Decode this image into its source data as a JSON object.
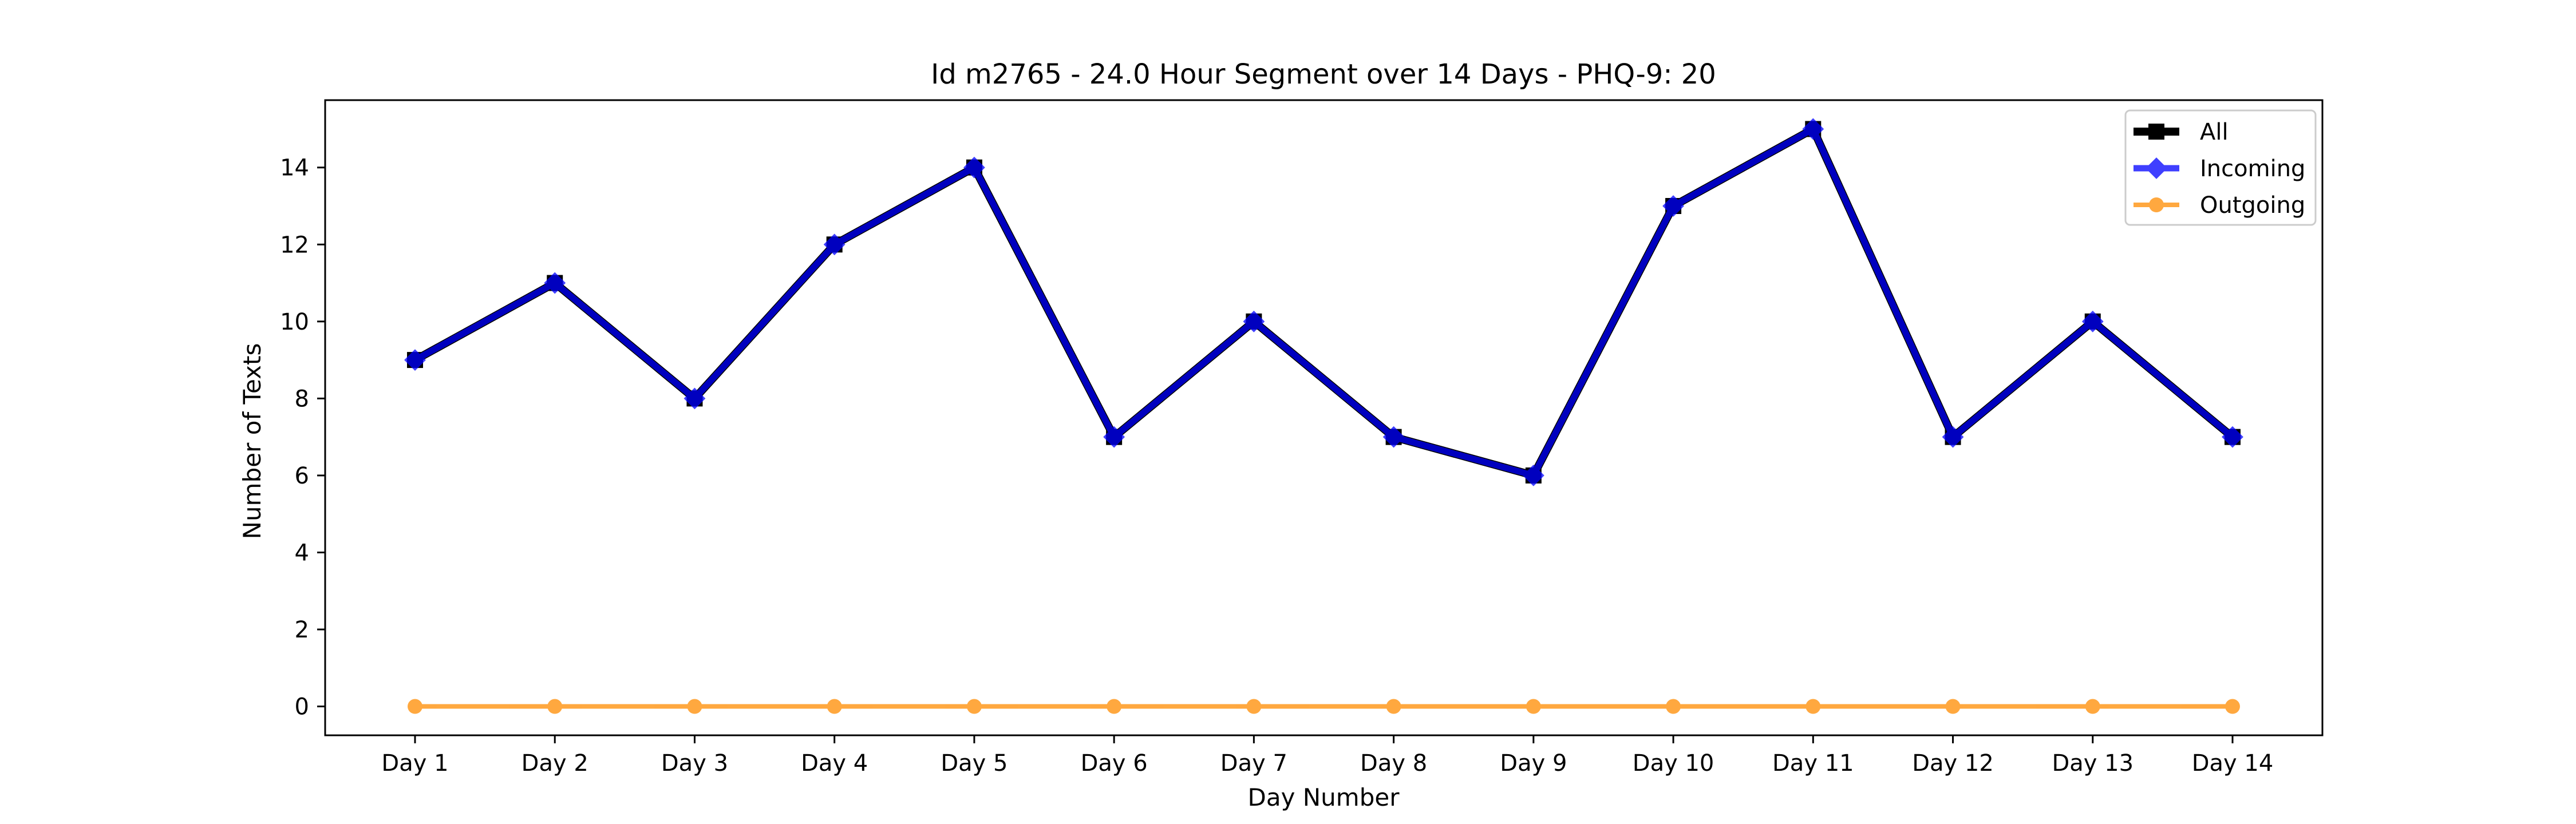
{
  "chart_data": {
    "type": "line",
    "title": "Id m2765 - 24.0 Hour Segment over 14 Days - PHQ-9: 20",
    "xlabel": "Day Number",
    "ylabel": "Number of Texts",
    "categories": [
      "Day 1",
      "Day 2",
      "Day 3",
      "Day 4",
      "Day 5",
      "Day 6",
      "Day 7",
      "Day 8",
      "Day 9",
      "Day 10",
      "Day 11",
      "Day 12",
      "Day 13",
      "Day 14"
    ],
    "ylim": [
      -0.75,
      15.75
    ],
    "yticks": [
      0,
      2,
      4,
      6,
      8,
      10,
      12,
      14
    ],
    "grid": false,
    "legend_position": "top-right",
    "series": [
      {
        "name": "All",
        "color": "#000000",
        "marker": "square",
        "values": [
          9,
          11,
          8,
          12,
          14,
          7,
          10,
          7,
          6,
          13,
          15,
          7,
          10,
          7
        ]
      },
      {
        "name": "Incoming",
        "color": "#0000ff",
        "marker": "diamond",
        "values": [
          9,
          11,
          8,
          12,
          14,
          7,
          10,
          7,
          6,
          13,
          15,
          7,
          10,
          7
        ]
      },
      {
        "name": "Outgoing",
        "color": "#ff8c00",
        "marker": "circle",
        "values": [
          0,
          0,
          0,
          0,
          0,
          0,
          0,
          0,
          0,
          0,
          0,
          0,
          0,
          0
        ]
      }
    ]
  }
}
